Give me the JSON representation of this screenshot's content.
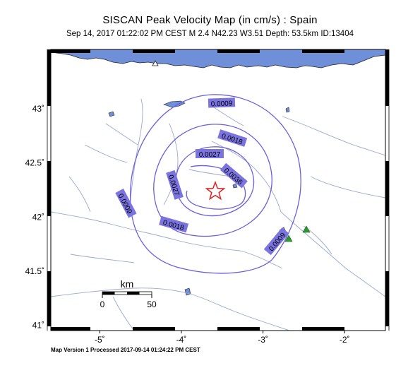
{
  "header": {
    "title": "SISCAN Peak Velocity Map (in cm/s) : Spain",
    "subtitle": "Sep 14, 2017 01:22:02 PM CEST   M 2.4   N42.23 W3.51   Depth: 53.5km   ID:13404"
  },
  "footer": {
    "text": "Map Version 1 Processed 2017-09-14 01:24:22 PM CEST"
  },
  "map": {
    "lon_range": [
      -5.6,
      -1.5
    ],
    "lat_range": [
      40.95,
      43.55
    ],
    "lon_ticks": [
      {
        "value": -5,
        "label": "-5˚"
      },
      {
        "value": -4,
        "label": "-4˚"
      },
      {
        "value": -3,
        "label": "-3˚"
      },
      {
        "value": -2,
        "label": "-2˚"
      }
    ],
    "lat_ticks": [
      {
        "value": 41,
        "label": "41˚"
      },
      {
        "value": 41.5,
        "label": "41.5˚"
      },
      {
        "value": 42,
        "label": "42˚"
      },
      {
        "value": 42.5,
        "label": "42.5˚"
      },
      {
        "value": 43,
        "label": "43˚"
      }
    ],
    "epicenter": {
      "lat": 42.23,
      "lon": -3.51
    },
    "contours": [
      {
        "label": "0.0036"
      },
      {
        "label": "0.0027"
      },
      {
        "label": "0.0027"
      },
      {
        "label": "0.0018"
      },
      {
        "label": "0.0018"
      },
      {
        "label": "0.0009"
      },
      {
        "label": "0.0009"
      },
      {
        "label": "0.0009"
      }
    ],
    "scale_bar": {
      "unit": "km",
      "start_label": "0",
      "end_label": "50"
    },
    "colors": {
      "sea": "#6f8fd8",
      "contour": "#6a5ee0",
      "label_bg": "#7b74e0",
      "river": "#9aa8cf",
      "epicenter": "#e02020",
      "station_tri": "#2e9a2e"
    }
  }
}
